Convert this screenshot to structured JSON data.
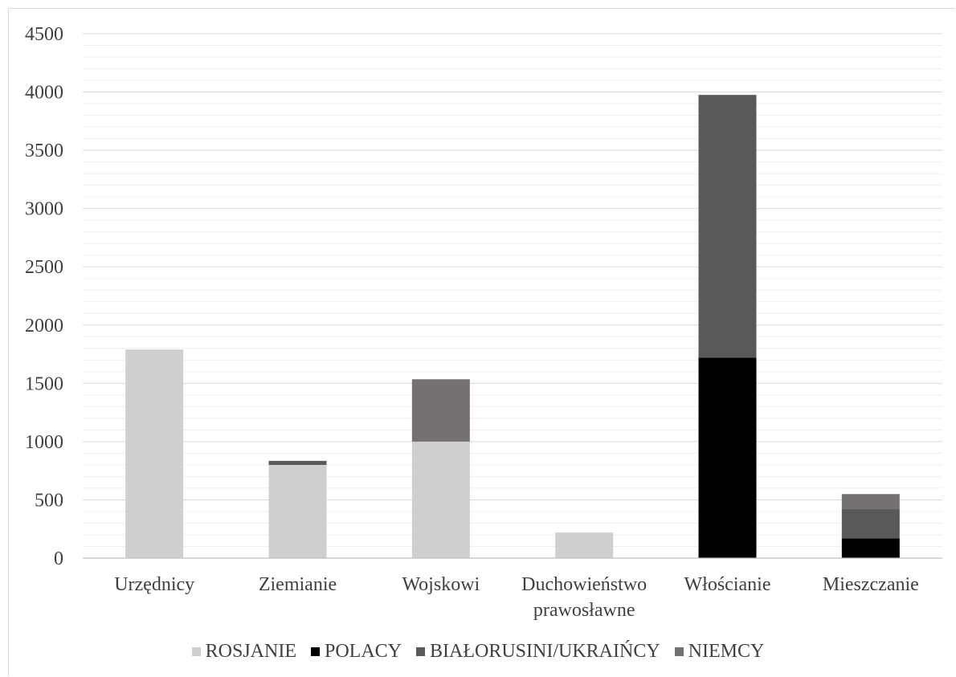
{
  "chart_data": {
    "type": "bar",
    "stacked": true,
    "categories": [
      "Urzędnicy",
      "Ziemianie",
      "Wojskowi",
      "Duchowieństwo prawosławne",
      "Włościanie",
      "Mieszczanie"
    ],
    "category_lines": [
      [
        "Urzędnicy"
      ],
      [
        "Ziemianie"
      ],
      [
        "Wojskowi"
      ],
      [
        "Duchowieństwo",
        "prawosławne"
      ],
      [
        "Włościanie"
      ],
      [
        "Mieszczanie"
      ]
    ],
    "series": [
      {
        "name": "ROSJANIE",
        "color": "#d0cece",
        "values": [
          1790,
          800,
          1000,
          220,
          0,
          0
        ]
      },
      {
        "name": "POLACY",
        "color": "#000000",
        "values": [
          0,
          0,
          0,
          0,
          1720,
          170
        ]
      },
      {
        "name": "BIAŁORUSINI/UKRAIŃCY",
        "color": "#595959",
        "values": [
          0,
          35,
          0,
          0,
          2255,
          250
        ]
      },
      {
        "name": "NIEMCY",
        "color": "#767171",
        "values": [
          0,
          0,
          535,
          0,
          0,
          130
        ]
      }
    ],
    "ylim": [
      0,
      4500
    ],
    "yticks": [
      0,
      500,
      1000,
      1500,
      2000,
      2500,
      3000,
      3500,
      4000,
      4500
    ],
    "minor_grid_step": 100,
    "grid": true,
    "legend_position": "bottom"
  }
}
